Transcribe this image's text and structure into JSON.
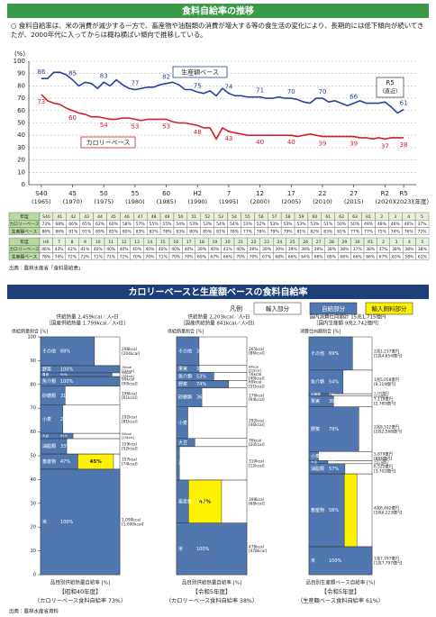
{
  "header": {
    "title": "食料自給率の推移",
    "lead": "○ 食料自給率は、米の消費が減少する一方で、畜産物や油脂類の消費が増大する等の食生活の変化により、長期的には低下傾向が続いてきたが、2000年代に入ってからは概ね横ばい傾向で推移している。"
  },
  "chart_data": {
    "type": "line",
    "y_label": "(%)",
    "x_unit": "（年度）",
    "x": [
      1965,
      1966,
      1967,
      1968,
      1969,
      1970,
      1971,
      1972,
      1973,
      1974,
      1975,
      1976,
      1977,
      1978,
      1979,
      1980,
      1981,
      1982,
      1983,
      1984,
      1985,
      1986,
      1987,
      1988,
      1989,
      1990,
      1991,
      1992,
      1993,
      1994,
      1995,
      1996,
      1997,
      1998,
      1999,
      2000,
      2001,
      2002,
      2003,
      2004,
      2005,
      2006,
      2007,
      2008,
      2009,
      2010,
      2011,
      2012,
      2013,
      2014,
      2015,
      2016,
      2017,
      2018,
      2019,
      2020,
      2021,
      2022,
      2023
    ],
    "xlim": [
      1963,
      2025
    ],
    "xticks": [
      {
        "value": 1965,
        "label": "S40"
      },
      {
        "value": 1970,
        "label": "45"
      },
      {
        "value": 1975,
        "label": "50"
      },
      {
        "value": 1980,
        "label": "55"
      },
      {
        "value": 1985,
        "label": "60"
      },
      {
        "value": 1990,
        "label": "H2"
      },
      {
        "value": 1995,
        "label": "7"
      },
      {
        "value": 2000,
        "label": "12"
      },
      {
        "value": 2005,
        "label": "17"
      },
      {
        "value": 2010,
        "label": "22"
      },
      {
        "value": 2015,
        "label": "27"
      },
      {
        "value": 2020,
        "label": "R2"
      },
      {
        "value": 2023,
        "label": "R5"
      }
    ],
    "xtick_years": [
      "(1965)",
      "(1970)",
      "(1975)",
      "(1980)",
      "(1985)",
      "(1990)",
      "(1995)",
      "(2000)",
      "(2005)",
      "(2010)",
      "(2015)",
      "(2020)",
      "(2023)"
    ],
    "ylim": [
      0,
      100
    ],
    "yticks": [
      0,
      10,
      20,
      30,
      40,
      50,
      60,
      70,
      80,
      90,
      100
    ],
    "grid": true,
    "series": [
      {
        "name": "生産額ベース",
        "color": "#24449a",
        "values": [
          86,
          86,
          91,
          91,
          89,
          85,
          80,
          83,
          82,
          78,
          83,
          80,
          85,
          81,
          78,
          77,
          78,
          79,
          79,
          81,
          82,
          83,
          81,
          77,
          77,
          75,
          74,
          76,
          72,
          78,
          74,
          72,
          72,
          71,
          71,
          71,
          70,
          70,
          71,
          70,
          70,
          69,
          67,
          66,
          70,
          70,
          67,
          68,
          66,
          64,
          66,
          68,
          66,
          66,
          66,
          67,
          63,
          58,
          61
        ]
      },
      {
        "name": "カロリーベース",
        "color": "#d0202a",
        "values": [
          73,
          68,
          66,
          65,
          62,
          60,
          58,
          57,
          55,
          55,
          54,
          53,
          53,
          54,
          54,
          53,
          52,
          53,
          53,
          53,
          53,
          51,
          50,
          50,
          49,
          48,
          46,
          46,
          37,
          46,
          43,
          42,
          41,
          40,
          40,
          40,
          40,
          40,
          40,
          40,
          40,
          39,
          40,
          41,
          40,
          39,
          39,
          39,
          39,
          39,
          39,
          38,
          38,
          37,
          38,
          37,
          38,
          38,
          38
        ]
      }
    ],
    "annotation": {
      "label": "R5",
      "sublabel": "（直近）"
    }
  },
  "table": {
    "blocks": [
      {
        "rows": [
          [
            "年度",
            "S40",
            "41",
            "42",
            "43",
            "44",
            "45",
            "46",
            "47",
            "48",
            "49",
            "50",
            "51",
            "52",
            "53",
            "54",
            "55",
            "56",
            "57",
            "58",
            "59",
            "60",
            "61",
            "62",
            "63",
            "H1",
            "2",
            "3",
            "4",
            "5"
          ],
          [
            "カロリーベース",
            "73%",
            "68%",
            "66%",
            "65%",
            "62%",
            "60%",
            "58%",
            "57%",
            "55%",
            "55%",
            "54%",
            "53%",
            "53%",
            "54%",
            "54%",
            "53%",
            "52%",
            "53%",
            "53%",
            "53%",
            "53%",
            "51%",
            "50%",
            "50%",
            "49%",
            "48%",
            "46%",
            "46%",
            "37%"
          ],
          [
            "生産額ベース",
            "86%",
            "86%",
            "91%",
            "91%",
            "89%",
            "85%",
            "80%",
            "83%",
            "82%",
            "78%",
            "83%",
            "80%",
            "85%",
            "81%",
            "78%",
            "77%",
            "78%",
            "79%",
            "79%",
            "81%",
            "82%",
            "83%",
            "81%",
            "77%",
            "77%",
            "75%",
            "74%",
            "76%",
            "72%"
          ]
        ]
      },
      {
        "rows": [
          [
            "年度",
            "H6",
            "7",
            "8",
            "9",
            "10",
            "11",
            "12",
            "13",
            "14",
            "15",
            "16",
            "17",
            "18",
            "19",
            "20",
            "21",
            "22",
            "23",
            "24",
            "25",
            "26",
            "27",
            "28",
            "29",
            "30",
            "R1",
            "2",
            "3",
            "4",
            "5"
          ],
          [
            "カロリーベース",
            "46%",
            "43%",
            "42%",
            "41%",
            "40%",
            "40%",
            "40%",
            "40%",
            "40%",
            "40%",
            "40%",
            "40%",
            "39%",
            "40%",
            "41%",
            "40%",
            "39%",
            "39%",
            "39%",
            "39%",
            "39%",
            "39%",
            "38%",
            "38%",
            "37%",
            "38%",
            "37%",
            "38%",
            "38%",
            "38%"
          ],
          [
            "生産額ベース",
            "78%",
            "74%",
            "72%",
            "72%",
            "71%",
            "71%",
            "71%",
            "70%",
            "70%",
            "71%",
            "70%",
            "70%",
            "69%",
            "67%",
            "66%",
            "70%",
            "70%",
            "67%",
            "68%",
            "66%",
            "64%",
            "66%",
            "68%",
            "66%",
            "66%",
            "66%",
            "67%",
            "63%",
            "58%",
            "61%"
          ]
        ]
      }
    ]
  },
  "source": "出典：農林水産省「食料需給表」",
  "section2": {
    "title": "カロリーベースと生産額ベースの食料自給率",
    "legend": {
      "title": "凡例",
      "items": [
        {
          "label": "輸入部分",
          "color": "#ffffff"
        },
        {
          "label": "自給部分",
          "color": "#5077b0"
        },
        {
          "label": "輸入飼料部分",
          "color": "#fff200"
        }
      ]
    },
    "share_ticks": [
      0,
      10,
      20,
      30,
      40,
      50,
      60,
      70,
      80,
      90,
      100
    ],
    "panels": [
      {
        "total": "供給熱量 2,459kcal／人・日",
        "domestic": "［国産供給熱量 1,799kcal／人・日］",
        "top_axis": "供給熱量割合 [%]",
        "bottom_axis": "品目別供給熱量自給率 [%]",
        "period": "【昭和40年度】",
        "rate": "（カロリーベース食料自給率 73%）",
        "items": [
          {
            "name": "その他",
            "amount": 298,
            "amount_label": "298kcal",
            "domestic_label": "[204kcal]",
            "self_rate": 68,
            "self_label": "68%"
          },
          {
            "name": "野菜",
            "amount": 74,
            "amount_label": "74kcal",
            "domestic_label": "[74kcal]",
            "self_rate": 100,
            "self_label": "100%"
          },
          {
            "name": "果実",
            "amount": 39,
            "amount_label": "39kcal",
            "domestic_label": "[35kcal]",
            "self_rate": 90,
            "self_label": "90%"
          },
          {
            "name": "魚介類",
            "amount": 99,
            "amount_label": "99kcal",
            "domestic_label": "[99kcal]",
            "self_rate": 100,
            "self_label": "100%"
          },
          {
            "name": "砂糖類",
            "amount": 196,
            "amount_label": "196kcal",
            "domestic_label": "[61kcal]",
            "self_rate": 31,
            "self_label": "31%"
          },
          {
            "name": "小麦",
            "amount": 292,
            "amount_label": "292kcal",
            "domestic_label": "[81kcal]",
            "self_rate": 28,
            "self_label": "28%"
          },
          {
            "name": "大豆",
            "amount": 55,
            "amount_label": "55kcal",
            "domestic_label": "[23kcal]",
            "self_rate": 41,
            "self_label": "41%"
          },
          {
            "name": "油脂類",
            "amount": 159,
            "amount_label": "159kcal",
            "domestic_label": "[52kcal]",
            "self_rate": 33,
            "self_label": "33%"
          },
          {
            "name": "畜産物",
            "amount": 157,
            "amount_label": "157kcal",
            "domestic_label": "[74kcal]",
            "self_rate": 47,
            "self_label": "47%",
            "feed_rate": 45,
            "feed_label": "45%"
          },
          {
            "name": "米",
            "amount": 1090,
            "amount_label": "1,090kcal",
            "domestic_label": "[1,090kcal]",
            "self_rate": 100,
            "self_label": "100%"
          }
        ]
      },
      {
        "total": "供給熱量 2,203kcal／人・日",
        "domestic": "［国産供給熱量 841kcal／人・日］",
        "top_axis": "供給熱量割合 [%]",
        "bottom_axis": "品目別供給熱量自給率 [%]",
        "period": "【令和5年度】",
        "rate": "（カロリーベース食料自給率 38%）",
        "items": [
          {
            "name": "その他",
            "amount": 265,
            "amount_label": "265kcal",
            "domestic_label": "[86kcal]",
            "self_rate": 32,
            "self_label": "32%"
          },
          {
            "name": "果実",
            "amount": 63,
            "amount_label": "63kcal",
            "domestic_label": "[20kcal]",
            "self_rate": 32,
            "self_label": "32%"
          },
          {
            "name": "魚介類",
            "amount": 76,
            "amount_label": "76kcal",
            "domestic_label": "[40kcal]",
            "self_rate": 53,
            "self_label": "53%"
          },
          {
            "name": "野菜",
            "amount": 69,
            "amount_label": "69kcal",
            "domestic_label": "[51kcal]",
            "self_rate": 74,
            "self_label": "74%"
          },
          {
            "name": "砂糖類",
            "amount": 176,
            "amount_label": "176kcal",
            "domestic_label": "[64kcal]",
            "self_rate": 36,
            "self_label": "36%"
          },
          {
            "name": "小麦",
            "amount": 292,
            "amount_label": "292kcal",
            "domestic_label": "[46kcal]",
            "self_rate": 16,
            "self_label": "16%"
          },
          {
            "name": "大豆",
            "amount": 76,
            "amount_label": "76kcal",
            "domestic_label": "[20kcal]",
            "self_rate": 26,
            "self_label": "26%"
          },
          {
            "name": "油脂類",
            "amount": 310,
            "amount_label": "310kcal",
            "domestic_label": "[12kcal]",
            "self_rate": 4,
            "self_label": "4%"
          },
          {
            "name": "畜産物",
            "amount": 398,
            "amount_label": "398kcal",
            "domestic_label": "[68kcal]",
            "self_rate": 17,
            "self_label": "17%",
            "feed_rate": 47,
            "feed_label": "47%"
          },
          {
            "name": "米",
            "amount": 478,
            "amount_label": "478kcal",
            "domestic_label": "[478kcal]",
            "self_rate": 100,
            "self_label": "100%"
          }
        ]
      },
      {
        "total": "国内消費仕向額計 15兆1,715億円",
        "domestic": "［国内生産額 9兆2,742億円］",
        "top_axis": "消費仕向額割合 [%]",
        "bottom_axis": "品目別生産額ベース自給率 [%]",
        "period": "【令和5年度】",
        "rate": "（生産額ベース食料自給率 61%）",
        "items": [
          {
            "name": "その他",
            "amount": 21237,
            "amount_label": "2兆1,237億円",
            "domestic_label": "[1兆4,654億円]",
            "self_rate": 69,
            "self_label": "69%"
          },
          {
            "name": "魚介類",
            "amount": 15058,
            "amount_label": "1兆5,058億円",
            "domestic_label": "[8,119億円]",
            "self_rate": 54,
            "self_label": "54%"
          },
          {
            "name": "砂糖類",
            "amount": 1239,
            "amount_label": "1,239億円",
            "domestic_label": "[434億円]",
            "self_rate": 35,
            "self_label": "35%"
          },
          {
            "name": "果実",
            "amount": 7119,
            "amount_label": "7,119億円",
            "domestic_label": "[2,780億円]",
            "self_rate": 39,
            "self_label": "39%"
          },
          {
            "name": "野菜",
            "amount": 28512,
            "amount_label": "2兆8,512億円",
            "domestic_label": "[2兆2,568億円]",
            "self_rate": 79,
            "self_label": "79%"
          },
          {
            "name": "小麦",
            "amount": 5879,
            "amount_label": "5,879億円",
            "domestic_label": "[884億円]",
            "self_rate": 15,
            "self_label": "15%"
          },
          {
            "name": "大豆",
            "amount": 1870,
            "amount_label": "1,870億円",
            "domestic_label": "[561億円]",
            "self_rate": 30,
            "self_label": "30%"
          },
          {
            "name": "油脂類",
            "amount": 6522,
            "amount_label": "6,522億円",
            "domestic_label": "[3,702億円]",
            "self_rate": 57,
            "self_label": "57%"
          },
          {
            "name": "畜産物",
            "amount": 46482,
            "amount_label": "4兆6,482億円",
            "domestic_label": "[2兆6,223億円]",
            "self_rate": 56,
            "self_label": "56%",
            "feed_rate": 20
          },
          {
            "name": "米",
            "amount": 17797,
            "amount_label": "1兆7,797億円",
            "domestic_label": "[1兆7,797億円]",
            "self_rate": 100,
            "self_label": "100%"
          }
        ]
      }
    ],
    "source": "出典：農林水産省資料"
  }
}
